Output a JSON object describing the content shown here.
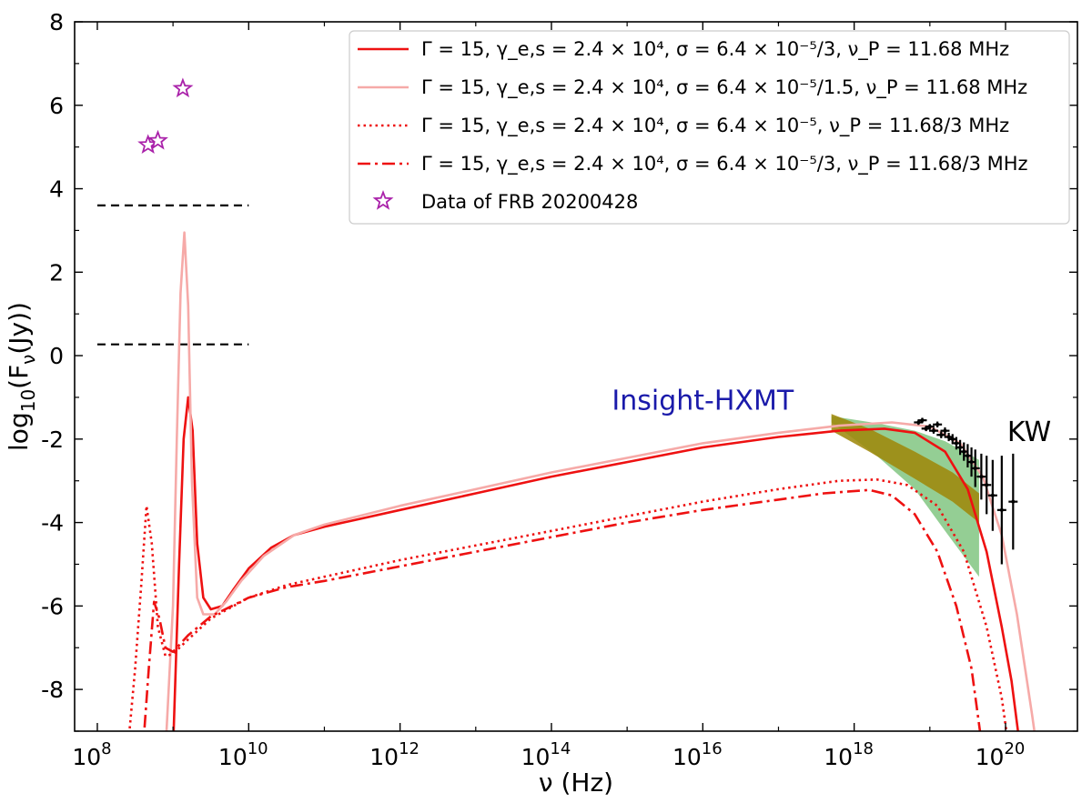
{
  "chart_data": {
    "type": "line",
    "xlabel": "ν (Hz)",
    "ylabel": "log10(Fν(Jy))",
    "x_scale": "log10",
    "xlim_log10": [
      7.7,
      20.95
    ],
    "ylim": [
      -9,
      8
    ],
    "x_ticks": [
      {
        "exp": 8,
        "label": "10",
        "sup": "8"
      },
      {
        "exp": 10,
        "label": "10",
        "sup": "10"
      },
      {
        "exp": 12,
        "label": "10",
        "sup": "12"
      },
      {
        "exp": 14,
        "label": "10",
        "sup": "14"
      },
      {
        "exp": 16,
        "label": "10",
        "sup": "16"
      },
      {
        "exp": 18,
        "label": "10",
        "sup": "18"
      },
      {
        "exp": 20,
        "label": "10",
        "sup": "20"
      }
    ],
    "y_ticks": [
      {
        "value": 8,
        "label": "8"
      },
      {
        "value": 6,
        "label": "6"
      },
      {
        "value": 4,
        "label": "4"
      },
      {
        "value": 2,
        "label": "2"
      },
      {
        "value": 0,
        "label": "0"
      },
      {
        "value": -2,
        "label": "-2"
      },
      {
        "value": -4,
        "label": "-4"
      },
      {
        "value": -6,
        "label": "-6"
      },
      {
        "value": -8,
        "label": "-8"
      }
    ],
    "series": [
      {
        "name": "Γ = 15, γe,s = 2.4 × 10^4, σ = 6.4 × 10^-5/3, νP = 11.68 MHz",
        "legend": "Γ = 15, γ_e,s = 2.4 × 10⁴, σ = 6.4 × 10⁻⁵/3, ν_P = 11.68 MHz",
        "color": "#ee1111",
        "style": "solid",
        "points": [
          [
            9.0,
            -9.5
          ],
          [
            9.08,
            -5
          ],
          [
            9.14,
            -2
          ],
          [
            9.2,
            -1.0
          ],
          [
            9.26,
            -1.8
          ],
          [
            9.32,
            -4.5
          ],
          [
            9.4,
            -5.8
          ],
          [
            9.5,
            -6.08
          ],
          [
            9.65,
            -6.0
          ],
          [
            9.8,
            -5.6
          ],
          [
            10.0,
            -5.1
          ],
          [
            10.3,
            -4.6
          ],
          [
            10.6,
            -4.3
          ],
          [
            11.0,
            -4.1
          ],
          [
            12.0,
            -3.7
          ],
          [
            13.0,
            -3.3
          ],
          [
            14.0,
            -2.9
          ],
          [
            15.0,
            -2.55
          ],
          [
            16.0,
            -2.2
          ],
          [
            17.0,
            -1.95
          ],
          [
            17.8,
            -1.8
          ],
          [
            18.4,
            -1.75
          ],
          [
            18.8,
            -1.85
          ],
          [
            19.2,
            -2.3
          ],
          [
            19.5,
            -3.2
          ],
          [
            19.75,
            -4.7
          ],
          [
            19.95,
            -6.5
          ],
          [
            20.08,
            -7.8
          ],
          [
            20.2,
            -9.5
          ]
        ]
      },
      {
        "name": "Γ = 15, γe,s = 2.4 × 10^4, σ = 6.4 × 10^-5/1.5, νP = 11.68 MHz",
        "legend": "Γ = 15, γ_e,s = 2.4 × 10⁴, σ = 6.4 × 10⁻⁵/1.5, ν_P = 11.68 MHz",
        "color": "#f6aaa8",
        "style": "solid",
        "points": [
          [
            8.9,
            -9.5
          ],
          [
            9.0,
            -6
          ],
          [
            9.05,
            -2
          ],
          [
            9.1,
            1.5
          ],
          [
            9.15,
            2.95
          ],
          [
            9.2,
            1.2
          ],
          [
            9.25,
            -3
          ],
          [
            9.32,
            -5.8
          ],
          [
            9.4,
            -6.2
          ],
          [
            9.55,
            -6.2
          ],
          [
            9.7,
            -5.9
          ],
          [
            9.9,
            -5.4
          ],
          [
            10.2,
            -4.8
          ],
          [
            10.6,
            -4.3
          ],
          [
            11.0,
            -4.05
          ],
          [
            12.0,
            -3.6
          ],
          [
            13.0,
            -3.2
          ],
          [
            14.0,
            -2.8
          ],
          [
            15.0,
            -2.45
          ],
          [
            16.0,
            -2.1
          ],
          [
            17.0,
            -1.85
          ],
          [
            17.8,
            -1.68
          ],
          [
            18.5,
            -1.6
          ],
          [
            19.0,
            -1.7
          ],
          [
            19.4,
            -2.1
          ],
          [
            19.7,
            -2.9
          ],
          [
            19.95,
            -4.3
          ],
          [
            20.15,
            -6.2
          ],
          [
            20.35,
            -8.6
          ],
          [
            20.42,
            -9.5
          ]
        ]
      },
      {
        "name": "Γ = 15, γe,s = 2.4 × 10^4, σ = 6.4 × 10^-5, νP = 11.68/3 MHz",
        "legend": "Γ = 15, γ_e,s = 2.4 × 10⁴, σ = 6.4 × 10⁻⁵, ν_P = 11.68/3 MHz",
        "color": "#ee1111",
        "style": "dotted",
        "points": [
          [
            8.4,
            -9.5
          ],
          [
            8.5,
            -7.5
          ],
          [
            8.58,
            -5.5
          ],
          [
            8.65,
            -3.6
          ],
          [
            8.72,
            -4.5
          ],
          [
            8.8,
            -6.5
          ],
          [
            8.9,
            -7.2
          ],
          [
            9.0,
            -7.15
          ],
          [
            9.2,
            -6.8
          ],
          [
            9.5,
            -6.3
          ],
          [
            10.0,
            -5.8
          ],
          [
            10.5,
            -5.5
          ],
          [
            11.0,
            -5.3
          ],
          [
            12.0,
            -4.9
          ],
          [
            13.0,
            -4.55
          ],
          [
            14.0,
            -4.2
          ],
          [
            15.0,
            -3.85
          ],
          [
            16.0,
            -3.5
          ],
          [
            17.0,
            -3.2
          ],
          [
            17.8,
            -3.0
          ],
          [
            18.3,
            -2.97
          ],
          [
            18.7,
            -3.1
          ],
          [
            19.1,
            -3.6
          ],
          [
            19.45,
            -4.7
          ],
          [
            19.75,
            -6.5
          ],
          [
            19.95,
            -8.2
          ],
          [
            20.05,
            -9.5
          ]
        ]
      },
      {
        "name": "Γ = 15, γe,s = 2.4 × 10^4, σ = 6.4 × 10^-5/3, νP = 11.68/3 MHz",
        "legend": "Γ = 15, γ_e,s = 2.4 × 10⁴, σ = 6.4 × 10⁻⁵/3, ν_P = 11.68/3 MHz",
        "color": "#ee1111",
        "style": "dashdot",
        "points": [
          [
            8.6,
            -9.5
          ],
          [
            8.68,
            -7.5
          ],
          [
            8.75,
            -5.9
          ],
          [
            8.82,
            -6.3
          ],
          [
            8.9,
            -7.0
          ],
          [
            9.0,
            -7.1
          ],
          [
            9.2,
            -6.7
          ],
          [
            9.5,
            -6.25
          ],
          [
            10.0,
            -5.8
          ],
          [
            10.5,
            -5.55
          ],
          [
            11.0,
            -5.4
          ],
          [
            12.0,
            -5.05
          ],
          [
            13.0,
            -4.7
          ],
          [
            14.0,
            -4.35
          ],
          [
            15.0,
            -4.0
          ],
          [
            16.0,
            -3.7
          ],
          [
            17.0,
            -3.45
          ],
          [
            17.6,
            -3.3
          ],
          [
            18.2,
            -3.22
          ],
          [
            18.5,
            -3.35
          ],
          [
            18.8,
            -3.8
          ],
          [
            19.1,
            -4.7
          ],
          [
            19.35,
            -6.0
          ],
          [
            19.55,
            -7.5
          ],
          [
            19.7,
            -9.5
          ]
        ]
      }
    ],
    "frb_data": {
      "legend": "Data of FRB 20200428",
      "color": "#aa22aa",
      "marker": "star-open",
      "points": [
        [
          8.67,
          5.05
        ],
        [
          8.8,
          5.15
        ],
        [
          9.13,
          6.4
        ]
      ]
    },
    "dashed_lines": [
      {
        "x_from": 8.0,
        "x_to": 10.0,
        "y": 3.6,
        "color": "#000000"
      },
      {
        "x_from": 8.0,
        "x_to": 10.0,
        "y": 0.27,
        "color": "#000000"
      }
    ],
    "hxmt_band_green": {
      "color": "#4cae4c",
      "upper": [
        [
          17.7,
          -1.45
        ],
        [
          18.3,
          -1.62
        ],
        [
          18.8,
          -1.8
        ],
        [
          19.2,
          -2.05
        ],
        [
          19.65,
          -2.5
        ]
      ],
      "lower": [
        [
          17.7,
          -1.6
        ],
        [
          18.3,
          -2.4
        ],
        [
          18.8,
          -3.2
        ],
        [
          19.2,
          -4.2
        ],
        [
          19.65,
          -5.3
        ]
      ]
    },
    "hxmt_band_orange": {
      "color": "#f0a000",
      "upper": [
        [
          17.7,
          -1.4
        ],
        [
          18.2,
          -1.75
        ],
        [
          18.8,
          -2.3
        ],
        [
          19.3,
          -2.8
        ],
        [
          19.65,
          -3.3
        ]
      ],
      "lower": [
        [
          17.7,
          -1.8
        ],
        [
          18.2,
          -2.3
        ],
        [
          18.8,
          -2.95
        ],
        [
          19.3,
          -3.5
        ],
        [
          19.65,
          -4.0
        ]
      ]
    },
    "kw_data": [
      [
        18.85,
        -1.6,
        0.06
      ],
      [
        18.9,
        -1.55,
        0.06
      ],
      [
        18.95,
        -1.75,
        0.06
      ],
      [
        19.0,
        -1.7,
        0.06
      ],
      [
        19.05,
        -1.8,
        0.07
      ],
      [
        19.1,
        -1.65,
        0.07
      ],
      [
        19.15,
        -1.9,
        0.08
      ],
      [
        19.2,
        -1.8,
        0.08
      ],
      [
        19.25,
        -1.95,
        0.1
      ],
      [
        19.3,
        -2.0,
        0.12
      ],
      [
        19.35,
        -2.1,
        0.15
      ],
      [
        19.4,
        -2.2,
        0.18
      ],
      [
        19.45,
        -2.3,
        0.22
      ],
      [
        19.5,
        -2.4,
        0.28
      ],
      [
        19.55,
        -2.55,
        0.35
      ],
      [
        19.6,
        -2.7,
        0.45
      ],
      [
        19.68,
        -2.9,
        0.55
      ],
      [
        19.75,
        -3.1,
        0.7
      ],
      [
        19.83,
        -3.35,
        0.85
      ],
      [
        19.95,
        -3.7,
        1.3
      ],
      [
        20.1,
        -3.5,
        1.15
      ]
    ],
    "annotations": {
      "hxmt": {
        "text": "Insight-HXMT",
        "x_log10": 16.0,
        "y": -1.3,
        "color": "#1a1aaa"
      },
      "kw": {
        "text": "KW",
        "x_log10": 20.0,
        "y": -2.05,
        "color": "#000000"
      }
    }
  }
}
